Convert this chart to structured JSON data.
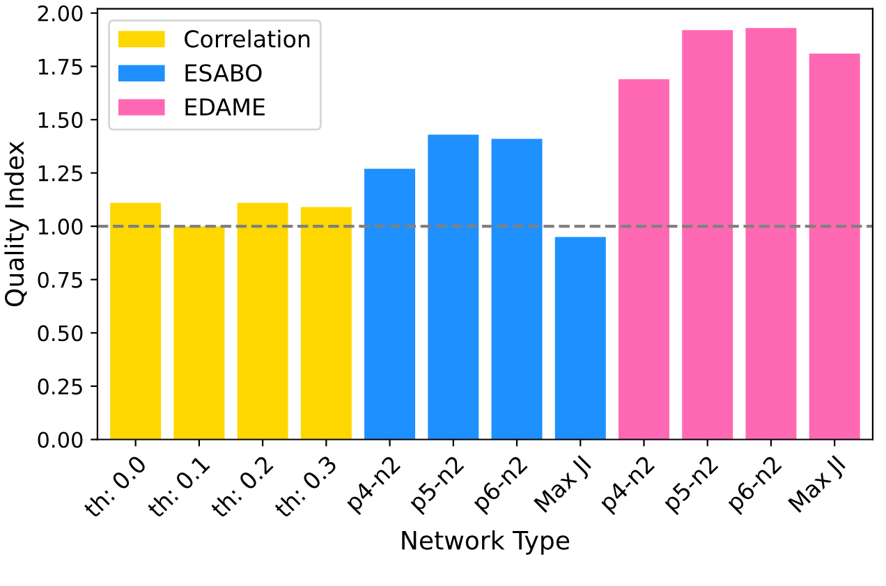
{
  "chart_data": {
    "type": "bar",
    "xlabel": "Network Type",
    "ylabel": "Quality Index",
    "categories": [
      "th: 0.0",
      "th: 0.1",
      "th: 0.2",
      "th: 0.3",
      "p4-n2",
      "p5-n2",
      "p6-n2",
      "Max JI",
      "p4-n2",
      "p5-n2",
      "p6-n2",
      "Max JI"
    ],
    "series": [
      {
        "name": "Correlation",
        "color": "#ffd700",
        "values": [
          1.11,
          1.0,
          1.11,
          1.09,
          null,
          null,
          null,
          null,
          null,
          null,
          null,
          null
        ]
      },
      {
        "name": "ESABO",
        "color": "#1e90ff",
        "values": [
          null,
          null,
          null,
          null,
          1.27,
          1.43,
          1.41,
          0.95,
          null,
          null,
          null,
          null
        ]
      },
      {
        "name": "EDAME",
        "color": "#ff69b4",
        "values": [
          null,
          null,
          null,
          null,
          null,
          null,
          null,
          null,
          1.69,
          1.92,
          1.93,
          1.81
        ]
      }
    ],
    "ylim": [
      0,
      2.02
    ],
    "yticks": [
      {
        "value": 0,
        "label": "0.00"
      },
      {
        "value": 0.25,
        "label": "0.25"
      },
      {
        "value": 0.5,
        "label": "0.50"
      },
      {
        "value": 0.75,
        "label": "0.75"
      },
      {
        "value": 1,
        "label": "1.00"
      },
      {
        "value": 1.25,
        "label": "1.25"
      },
      {
        "value": 1.5,
        "label": "1.50"
      },
      {
        "value": 1.75,
        "label": "1.75"
      },
      {
        "value": 2,
        "label": "2.00"
      }
    ],
    "ref_lines": [
      {
        "axis": "y",
        "value": 1.0,
        "color": "#808080",
        "line_style": "dashed"
      }
    ],
    "legend": "top left",
    "grid": false
  }
}
